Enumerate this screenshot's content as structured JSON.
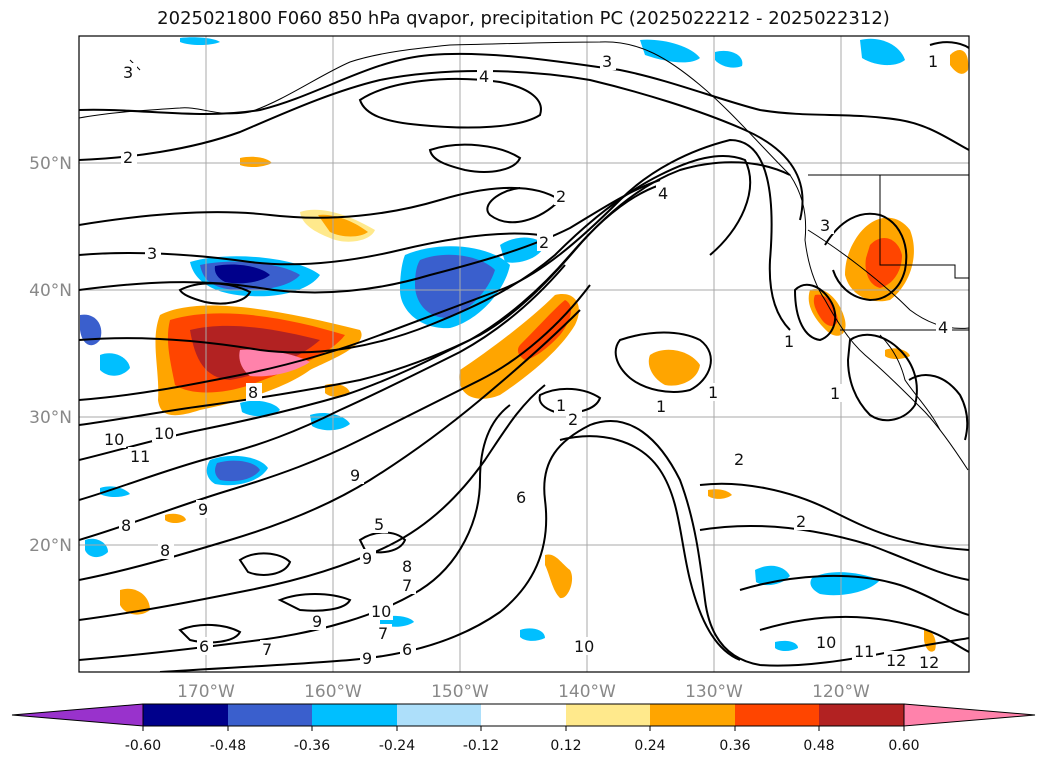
{
  "title": "2025021800 F060 850 hPa qvapor, precipitation PC (2025022212 - 2025022312)",
  "lat_labels": [
    "50°N",
    "40°N",
    "30°N",
    "20°N"
  ],
  "lon_labels": [
    "170°W",
    "160°W",
    "150°W",
    "140°W",
    "130°W",
    "120°W"
  ],
  "contour_labels": [
    "3",
    "4",
    "3",
    "1",
    "2",
    "3",
    "2",
    "2",
    "4",
    "3",
    "1",
    "4",
    "1",
    "8",
    "10",
    "10",
    "11",
    "1",
    "2",
    "1",
    "2",
    "1",
    "10",
    "9",
    "6",
    "2",
    "8",
    "8",
    "9",
    "5",
    "8",
    "9",
    "7",
    "10",
    "9",
    "7",
    "6",
    "9",
    "6",
    "7",
    "10",
    "11",
    "12",
    "12"
  ],
  "colorbar": {
    "ticks": [
      "-0.60",
      "-0.48",
      "-0.36",
      "-0.24",
      "-0.12",
      "0.12",
      "0.24",
      "0.36",
      "0.48",
      "0.60"
    ],
    "colors": [
      "#9932CC",
      "#00008B",
      "#3A5FCD",
      "#00BFFF",
      "#ADDFFA",
      "#FFFFFF",
      "#FFE98C",
      "#FFA500",
      "#FF4500",
      "#B22222",
      "#FF82AB"
    ]
  }
}
